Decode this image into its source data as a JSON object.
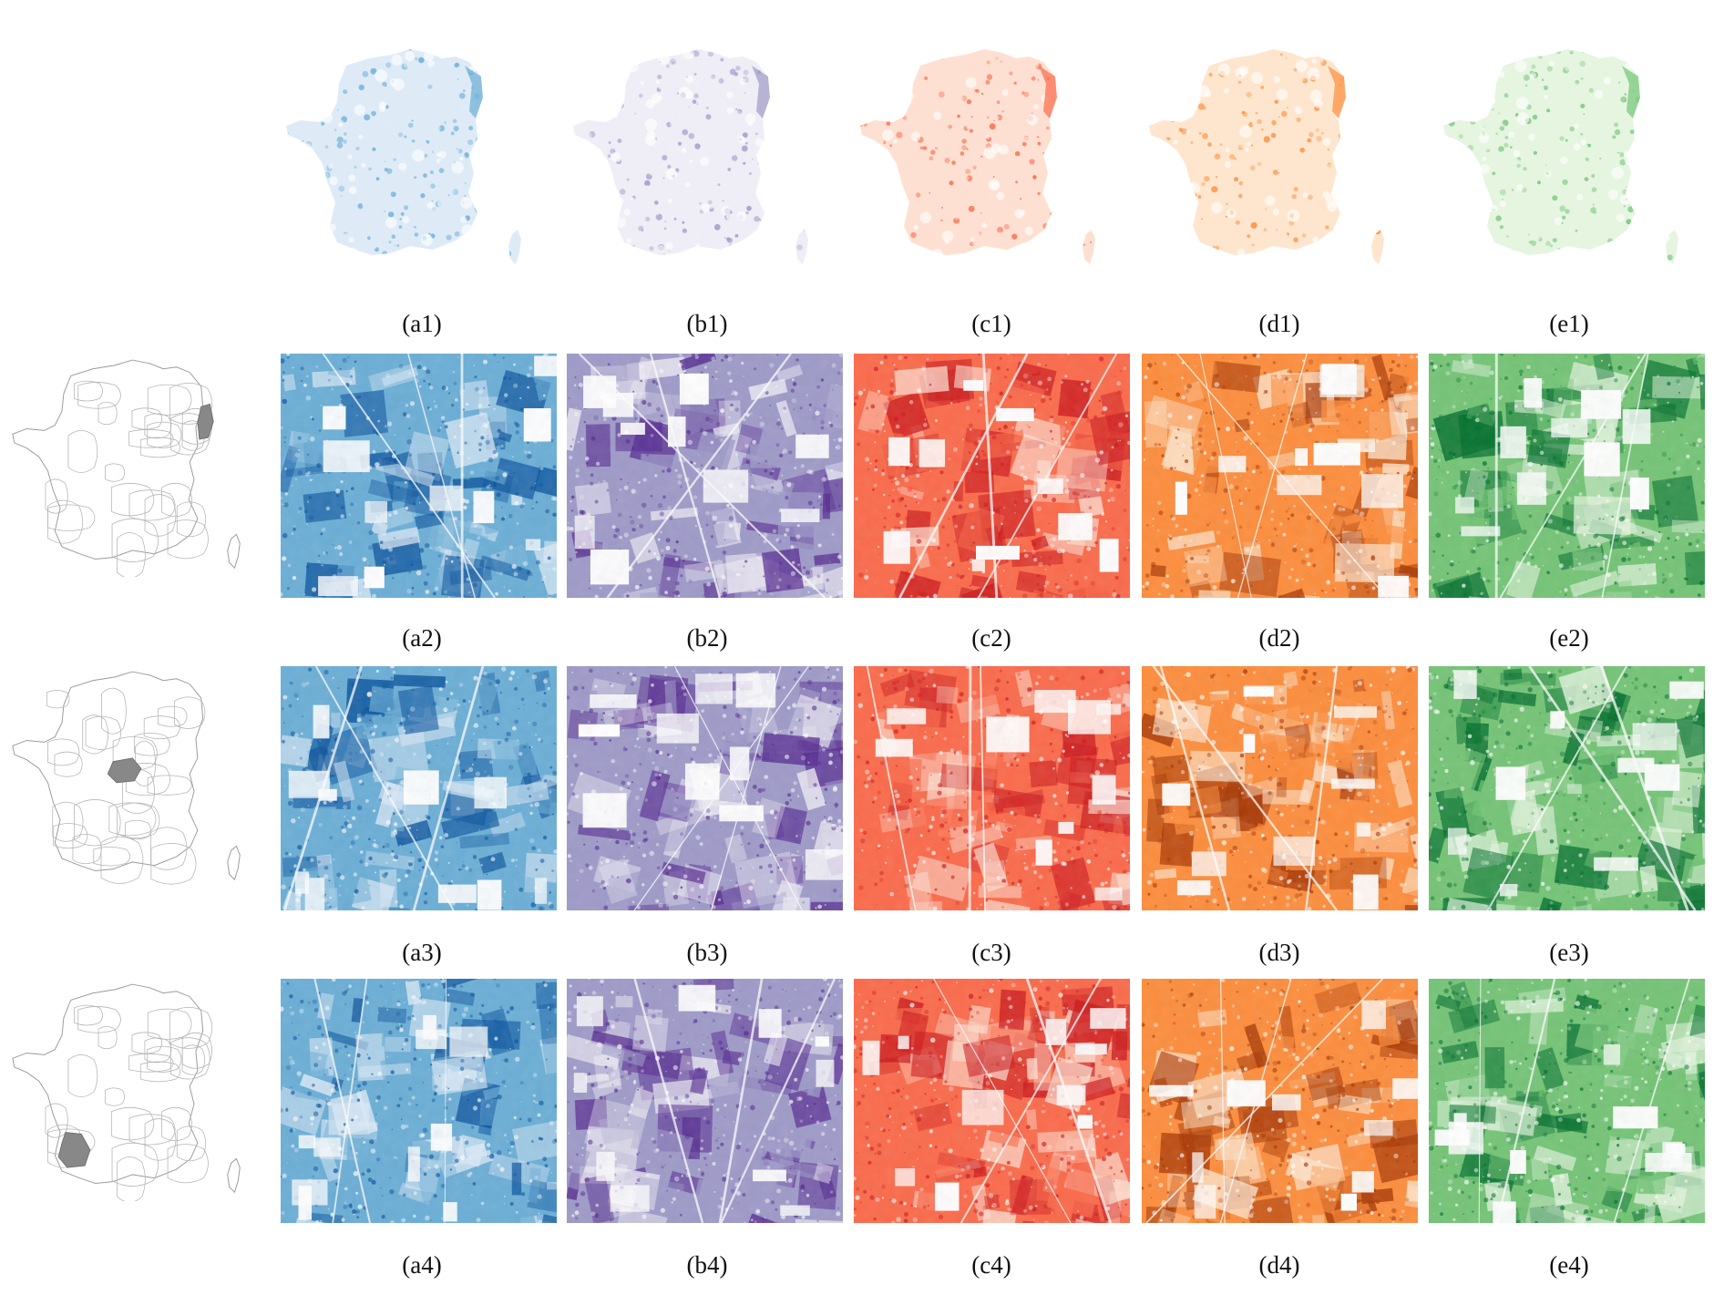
{
  "figure": {
    "panels": [
      {
        "col": "a",
        "palette": "Blues",
        "color_light": "#deebf7",
        "color_mid": "#6baed6",
        "color_dark": "#08519c"
      },
      {
        "col": "b",
        "palette": "Purples",
        "color_light": "#efedf5",
        "color_mid": "#9e9ac8",
        "color_dark": "#54278f"
      },
      {
        "col": "c",
        "palette": "Reds",
        "color_light": "#fee0d2",
        "color_mid": "#fb6a4a",
        "color_dark": "#cb181d"
      },
      {
        "col": "d",
        "palette": "Oranges",
        "color_light": "#fee6ce",
        "color_mid": "#fd8d3c",
        "color_dark": "#a63603"
      },
      {
        "col": "e",
        "palette": "Greens",
        "color_light": "#e5f5e0",
        "color_mid": "#74c476",
        "color_dark": "#006d2c"
      }
    ],
    "captions": {
      "row1": [
        "(a1)",
        "(b1)",
        "(c1)",
        "(d1)",
        "(e1)"
      ],
      "row2": [
        "(a2)",
        "(b2)",
        "(c2)",
        "(d2)",
        "(e2)"
      ],
      "row3": [
        "(a3)",
        "(b3)",
        "(c3)",
        "(d3)",
        "(e3)"
      ],
      "row4": [
        "(a4)",
        "(b4)",
        "(c4)",
        "(d4)",
        "(e4)"
      ]
    },
    "locator_maps": [
      {
        "row": 2,
        "highlighted_region": "north-east (Alsace)"
      },
      {
        "row": 3,
        "highlighted_region": "centre (Loiret)"
      },
      {
        "row": 4,
        "highlighted_region": "south-west (Landes)"
      }
    ]
  }
}
